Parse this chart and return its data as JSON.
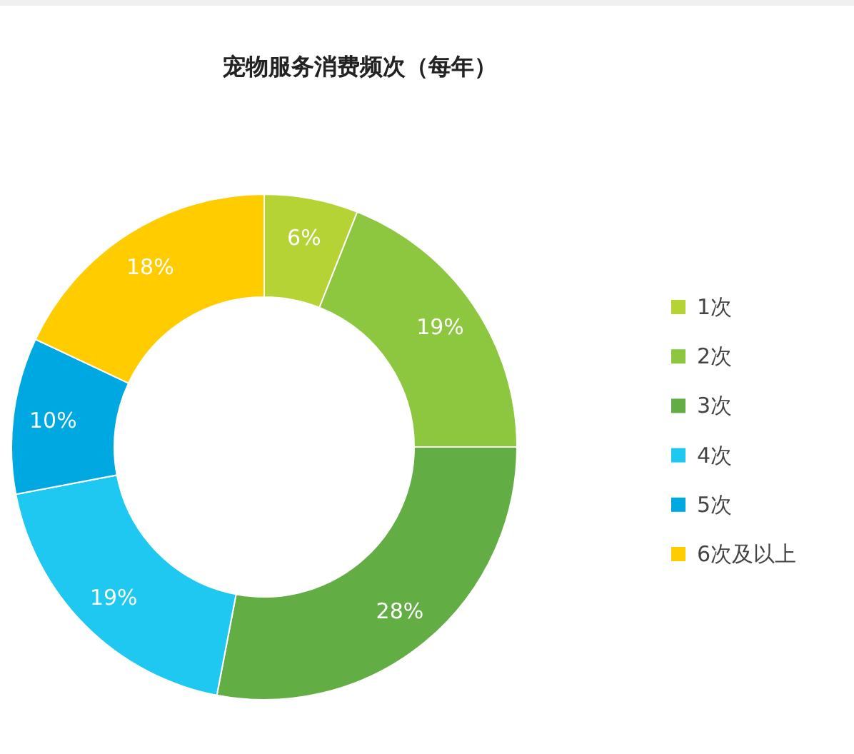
{
  "chart_data": {
    "type": "donut",
    "title": "宠物服务消费频次（每年）",
    "categories": [
      "1次",
      "2次",
      "3次",
      "4次",
      "5次",
      "6次及以上"
    ],
    "values": [
      6,
      19,
      28,
      19,
      10,
      18
    ],
    "value_labels": [
      "6%",
      "19%",
      "28%",
      "19%",
      "10%",
      "18%"
    ],
    "colors": [
      "#b5d334",
      "#8dc63f",
      "#62ae45",
      "#1ec8f0",
      "#00a8e1",
      "#ffcc00"
    ],
    "legend": "right"
  }
}
